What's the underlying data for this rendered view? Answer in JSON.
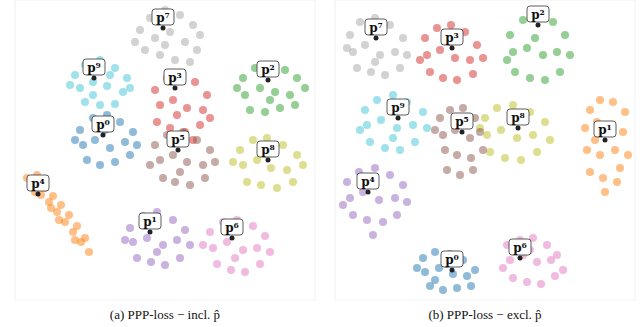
{
  "chart_data": [
    {
      "type": "scatter",
      "title": "(a) PPP-loss − incl. p̂",
      "xlim": [
        0,
        300
      ],
      "ylim": [
        0,
        300
      ],
      "tick_labels": false,
      "marker": "circle",
      "series": [
        {
          "color": "#a5a5a5",
          "x": [
            125,
            135,
            150,
            165,
            178,
            140,
            155,
            170,
            182,
            130,
            145,
            160,
            175,
            150,
            120,
            185
          ],
          "values": [
            270,
            282,
            290,
            285,
            275,
            262,
            268,
            258,
            250,
            250,
            245,
            240,
            238,
            255,
            258,
            265
          ]
        },
        {
          "color": "#3fc5d8",
          "x": [
            60,
            70,
            85,
            100,
            112,
            65,
            78,
            92,
            108,
            70,
            85,
            100,
            78,
            95,
            55,
            115
          ],
          "values": [
            225,
            235,
            240,
            232,
            222,
            212,
            218,
            214,
            208,
            198,
            195,
            196,
            205,
            225,
            215,
            212
          ]
        },
        {
          "color": "#d62728",
          "x": [
            140,
            152,
            165,
            180,
            192,
            145,
            158,
            172,
            188,
            142,
            155,
            170,
            185,
            162,
            178,
            195
          ],
          "values": [
            210,
            222,
            225,
            218,
            205,
            195,
            200,
            192,
            190,
            178,
            172,
            168,
            175,
            185,
            160,
            182
          ]
        },
        {
          "color": "#2ca02c",
          "x": [
            228,
            240,
            255,
            270,
            282,
            230,
            245,
            260,
            275,
            235,
            250,
            265,
            280,
            290,
            222,
            255
          ],
          "values": [
            222,
            232,
            235,
            230,
            222,
            205,
            212,
            208,
            205,
            190,
            188,
            192,
            195,
            212,
            212,
            200
          ]
        },
        {
          "color": "#1f77b4",
          "x": [
            65,
            78,
            92,
            105,
            118,
            68,
            80,
            95,
            110,
            72,
            85,
            100,
            115,
            60,
            122,
            90
          ],
          "values": [
            170,
            182,
            185,
            178,
            168,
            155,
            160,
            152,
            158,
            140,
            135,
            138,
            145,
            160,
            155,
            170
          ]
        },
        {
          "color": "#8c564b",
          "x": [
            140,
            152,
            168,
            182,
            195,
            145,
            158,
            172,
            188,
            148,
            160,
            175,
            190,
            165,
            135,
            200
          ],
          "values": [
            155,
            165,
            168,
            160,
            150,
            140,
            145,
            138,
            135,
            122,
            118,
            115,
            122,
            128,
            135,
            138
          ]
        },
        {
          "color": "#bcbd22",
          "x": [
            225,
            238,
            252,
            268,
            282,
            228,
            242,
            256,
            272,
            232,
            246,
            262,
            278,
            288,
            218,
            252
          ],
          "values": [
            150,
            160,
            162,
            155,
            145,
            135,
            140,
            132,
            130,
            118,
            115,
            112,
            118,
            135,
            138,
            145
          ]
        },
        {
          "color": "#ff7f0e",
          "x": [
            12,
            18,
            22,
            26,
            30,
            34,
            38,
            42,
            46,
            50,
            54,
            58,
            62,
            66,
            70,
            74,
            20,
            44,
            60,
            36
          ],
          "values": [
            122,
            115,
            125,
            105,
            112,
            98,
            104,
            88,
            95,
            78,
            85,
            68,
            74,
            58,
            62,
            48,
            108,
            80,
            60,
            92
          ]
        },
        {
          "color": "#9467bd",
          "x": [
            115,
            128,
            142,
            158,
            170,
            118,
            132,
            148,
            162,
            122,
            136,
            150,
            165,
            110,
            175,
            142
          ],
          "values": [
            72,
            84,
            88,
            80,
            70,
            58,
            62,
            55,
            60,
            42,
            38,
            35,
            42,
            60,
            55,
            48
          ]
        },
        {
          "color": "#e377c2",
          "x": [
            195,
            208,
            222,
            238,
            250,
            198,
            212,
            228,
            242,
            202,
            216,
            230,
            245,
            188,
            255,
            220
          ],
          "values": [
            68,
            78,
            80,
            74,
            64,
            52,
            58,
            50,
            52,
            36,
            30,
            28,
            36,
            55,
            48,
            42
          ]
        }
      ],
      "annotations": [
        {
          "text": "p⁷",
          "x": 148,
          "y": 272
        },
        {
          "text": "p⁹",
          "x": 79,
          "y": 222
        },
        {
          "text": "p³",
          "x": 160,
          "y": 212
        },
        {
          "text": "p²",
          "x": 253,
          "y": 220
        },
        {
          "text": "p⁰",
          "x": 88,
          "y": 165
        },
        {
          "text": "p⁵",
          "x": 163,
          "y": 150
        },
        {
          "text": "p⁸",
          "x": 253,
          "y": 140
        },
        {
          "text": "p⁴",
          "x": 23,
          "y": 106
        },
        {
          "text": "p¹",
          "x": 135,
          "y": 68
        },
        {
          "text": "p⁶",
          "x": 217,
          "y": 62
        }
      ]
    },
    {
      "type": "scatter",
      "title": "(b) PPP-loss − excl. p̂",
      "xlim": [
        0,
        300
      ],
      "ylim": [
        0,
        300
      ],
      "tick_labels": false,
      "marker": "circle",
      "series": [
        {
          "color": "#a5a5a5",
          "x": [
            15,
            25,
            40,
            55,
            68,
            18,
            30,
            45,
            60,
            22,
            36,
            50,
            65,
            12,
            72,
            40
          ],
          "values": [
            265,
            278,
            282,
            275,
            262,
            248,
            255,
            245,
            248,
            232,
            228,
            225,
            232,
            252,
            245,
            238
          ]
        },
        {
          "color": "#d62728",
          "x": [
            90,
            102,
            116,
            130,
            142,
            92,
            105,
            120,
            135,
            95,
            108,
            122,
            138,
            85,
            148,
            115
          ],
          "values": [
            262,
            272,
            275,
            268,
            255,
            245,
            250,
            242,
            240,
            228,
            222,
            220,
            226,
            240,
            242,
            258
          ]
        },
        {
          "color": "#2ca02c",
          "x": [
            175,
            188,
            202,
            218,
            230,
            178,
            192,
            208,
            222,
            180,
            195,
            210,
            225,
            172,
            235,
            200
          ],
          "values": [
            265,
            280,
            285,
            278,
            265,
            248,
            252,
            245,
            248,
            228,
            222,
            220,
            228,
            240,
            245,
            262
          ]
        },
        {
          "color": "#3fc5d8",
          "x": [
            30,
            42,
            58,
            72,
            88,
            32,
            46,
            62,
            78,
            35,
            50,
            65,
            80,
            25,
            92,
            58
          ],
          "values": [
            190,
            200,
            205,
            198,
            188,
            175,
            180,
            172,
            175,
            158,
            152,
            150,
            158,
            170,
            172,
            162
          ]
        },
        {
          "color": "#bcbd22",
          "x": [
            150,
            162,
            178,
            195,
            210,
            152,
            166,
            182,
            198,
            155,
            170,
            186,
            202,
            145,
            215,
            180
          ],
          "values": [
            182,
            192,
            195,
            188,
            178,
            165,
            170,
            162,
            165,
            148,
            142,
            140,
            148,
            172,
            160,
            178
          ]
        },
        {
          "color": "#8c564b",
          "x": [
            105,
            115,
            128,
            140,
            108,
            120,
            135,
            145,
            110,
            122,
            136,
            112,
            125,
            138,
            100,
            148
          ],
          "values": [
            182,
            190,
            192,
            182,
            165,
            170,
            162,
            168,
            150,
            145,
            142,
            130,
            125,
            130,
            170,
            150
          ]
        },
        {
          "color": "#ff7f0e",
          "x": [
            255,
            265,
            278,
            290,
            250,
            262,
            275,
            288,
            252,
            265,
            280,
            293,
            255,
            268,
            282,
            270,
            260,
            285
          ],
          "values": [
            190,
            200,
            198,
            188,
            172,
            178,
            170,
            168,
            150,
            145,
            150,
            145,
            128,
            122,
            118,
            108,
            160,
            132
          ]
        },
        {
          "color": "#9467bd",
          "x": [
            12,
            24,
            40,
            55,
            68,
            15,
            28,
            44,
            60,
            18,
            32,
            48,
            62,
            8,
            72,
            38
          ],
          "values": [
            118,
            128,
            132,
            125,
            115,
            102,
            108,
            100,
            102,
            85,
            80,
            78,
            85,
            95,
            98,
            65
          ]
        },
        {
          "color": "#1f77b4",
          "x": [
            88,
            100,
            115,
            128,
            140,
            90,
            104,
            118,
            132,
            95,
            108,
            122,
            136,
            82,
            112,
            100
          ],
          "values": [
            42,
            48,
            46,
            40,
            30,
            28,
            32,
            26,
            24,
            14,
            10,
            12,
            14,
            32,
            36,
            20
          ]
        },
        {
          "color": "#e377c2",
          "x": [
            172,
            185,
            198,
            212,
            222,
            175,
            188,
            202,
            216,
            178,
            192,
            206,
            220,
            168,
            195,
            228
          ],
          "values": [
            55,
            60,
            62,
            55,
            45,
            40,
            45,
            38,
            40,
            22,
            18,
            16,
            24,
            32,
            50,
            30
          ]
        }
      ],
      "annotations": [
        {
          "text": "p⁷",
          "x": 41,
          "y": 262
        },
        {
          "text": "p³",
          "x": 117,
          "y": 252
        },
        {
          "text": "p²",
          "x": 203,
          "y": 275
        },
        {
          "text": "p⁹",
          "x": 63,
          "y": 182
        },
        {
          "text": "p⁸",
          "x": 183,
          "y": 172
        },
        {
          "text": "p⁵",
          "x": 127,
          "y": 168
        },
        {
          "text": "p¹",
          "x": 270,
          "y": 160
        },
        {
          "text": "p⁴",
          "x": 33,
          "y": 108
        },
        {
          "text": "p⁰",
          "x": 117,
          "y": 30
        },
        {
          "text": "p⁶",
          "x": 185,
          "y": 42
        }
      ]
    }
  ]
}
